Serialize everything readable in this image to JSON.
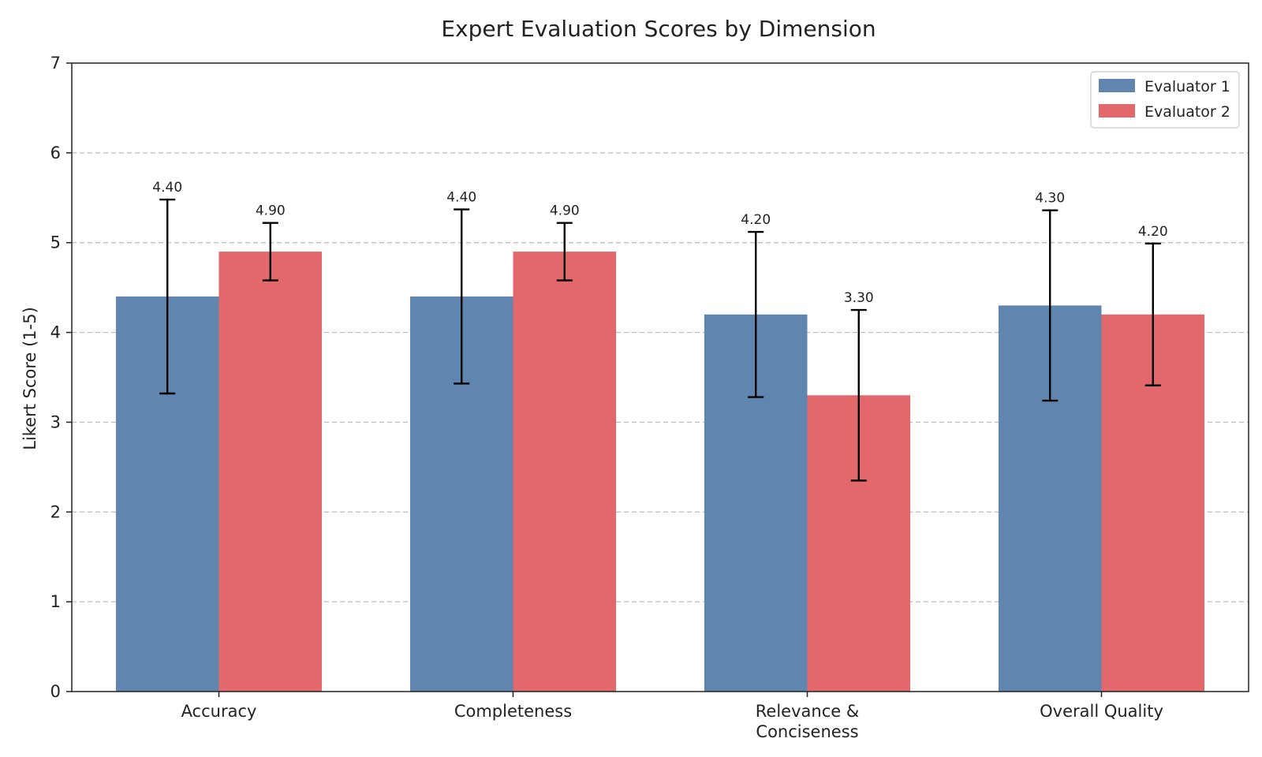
{
  "chart_data": {
    "type": "bar",
    "title": "Expert Evaluation Scores by Dimension",
    "xlabel": "",
    "ylabel": "Likert Score (1-5)",
    "ylim": [
      0,
      7
    ],
    "yticks": [
      "0",
      "1",
      "2",
      "3",
      "4",
      "5",
      "6",
      "7"
    ],
    "grid": true,
    "legend_position": "top-right",
    "categories": [
      [
        "Accuracy"
      ],
      [
        "Completeness"
      ],
      [
        "Relevance &",
        "Conciseness"
      ],
      [
        "Overall Quality"
      ]
    ],
    "series": [
      {
        "name": "Evaluator 1",
        "color": "#6086b0",
        "values": [
          4.4,
          4.4,
          4.2,
          4.3
        ],
        "errors": [
          1.08,
          0.97,
          0.92,
          1.06
        ],
        "labels": [
          "4.40",
          "4.40",
          "4.20",
          "4.30"
        ]
      },
      {
        "name": "Evaluator 2",
        "color": "#e3686b",
        "values": [
          4.9,
          4.9,
          3.3,
          4.2
        ],
        "errors": [
          0.32,
          0.32,
          0.95,
          0.79
        ],
        "labels": [
          "4.90",
          "4.90",
          "3.30",
          "4.20"
        ]
      }
    ]
  }
}
